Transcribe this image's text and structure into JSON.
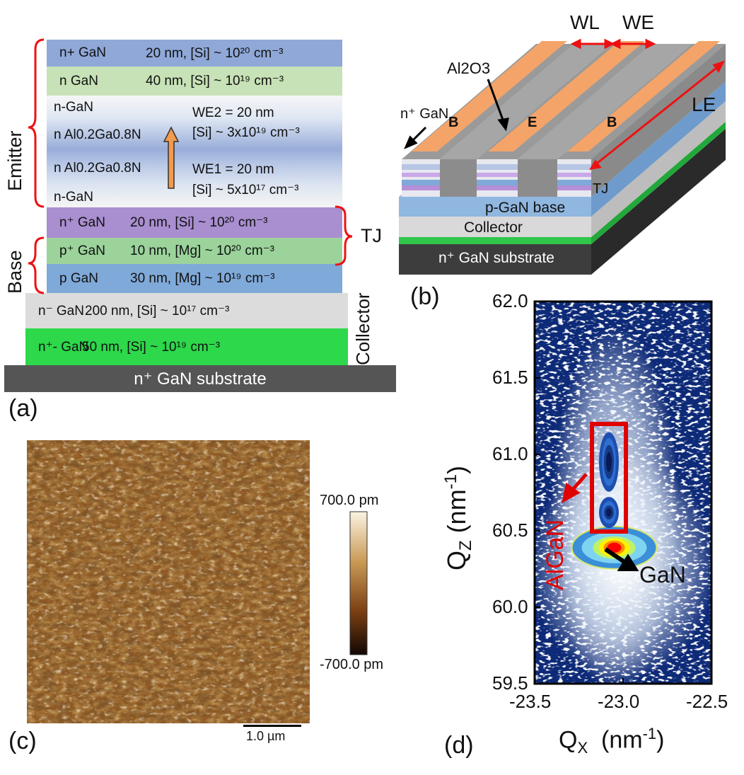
{
  "panel_a": {
    "label": "(a)",
    "layers": [
      {
        "name": "n+ GaN",
        "spec": "20 nm, [Si] ~ 10²⁰ cm⁻³",
        "color": "#8fa8d8"
      },
      {
        "name": "n GaN",
        "spec": "40 nm, [Si] ~ 10¹⁹ cm⁻³",
        "color": "#c7e2b6"
      },
      {
        "name": "n⁺ GaN",
        "spec": "20 nm, [Si] ~ 10²⁰ cm⁻³",
        "color": "#a98ed0"
      },
      {
        "name": "p⁺ GaN",
        "spec": "10 nm, [Mg] ~ 10²⁰ cm⁻³",
        "color": "#9bd39b"
      },
      {
        "name": "p GaN",
        "spec": "30 nm, [Mg] ~ 10¹⁹ cm⁻³",
        "color": "#7fa9d8"
      },
      {
        "name": "n⁻ GaN",
        "spec": "200 nm, [Si] ~ 10¹⁷ cm⁻³",
        "color": "#dcdcdc"
      },
      {
        "name": "n⁺- GaN",
        "spec": "50 nm, [Si] ~ 10¹⁹ cm⁻³",
        "color": "#2dd84a"
      }
    ],
    "graded": {
      "top_label": "n-GaN",
      "algan1": "n Al0.2Ga0.8N",
      "algan2": "n Al0.2Ga0.8N",
      "bottom_label": "n-GaN",
      "we2": "WE2 = 20 nm",
      "we2_doping": "[Si] ~ 3x10¹⁹ cm⁻³",
      "we1": "WE1 = 20 nm",
      "we1_doping": "[Si] ~ 5x10¹⁷ cm⁻³"
    },
    "substrate": "n⁺ GaN substrate",
    "side_labels": {
      "emitter": "Emitter",
      "base": "Base",
      "collector": "Collector",
      "tj": "TJ"
    }
  },
  "panel_b": {
    "label": "(b)",
    "wl": "WL",
    "we": "WE",
    "le": "LE",
    "al2o3": "Al2O3",
    "ngan": "n⁺ GaN",
    "pad_b": "B",
    "pad_e": "E",
    "tj": "TJ",
    "base": "p-GaN base",
    "collector": "Collector",
    "substrate": "n⁺ GaN substrate"
  },
  "panel_c": {
    "label": "(c)",
    "colorbar_max": "700.0 pm",
    "colorbar_min": "-700.0 pm",
    "scalebar": "1.0 µm"
  },
  "panel_d": {
    "label": "(d)",
    "algan_label": "AlGaN",
    "gan_label": "GaN",
    "chart_data": {
      "type": "heatmap",
      "xlabel": "QX  (nm-1)",
      "ylabel": "QZ (nm-1)",
      "xlim": [
        -23.5,
        -22.5
      ],
      "ylim": [
        59.5,
        62.0
      ],
      "x_ticks": [
        "-23.5",
        "-23.0",
        "-22.5"
      ],
      "y_ticks": [
        "62.0",
        "61.5",
        "61.0",
        "60.5",
        "60.0",
        "59.5"
      ],
      "peaks": [
        {
          "name": "GaN",
          "qx": -23.05,
          "qz": 60.39
        },
        {
          "name": "AlGaN",
          "qx": -23.08,
          "qz": 60.95
        },
        {
          "name": "AlGaN",
          "qx": -23.08,
          "qz": 60.62
        }
      ]
    }
  }
}
